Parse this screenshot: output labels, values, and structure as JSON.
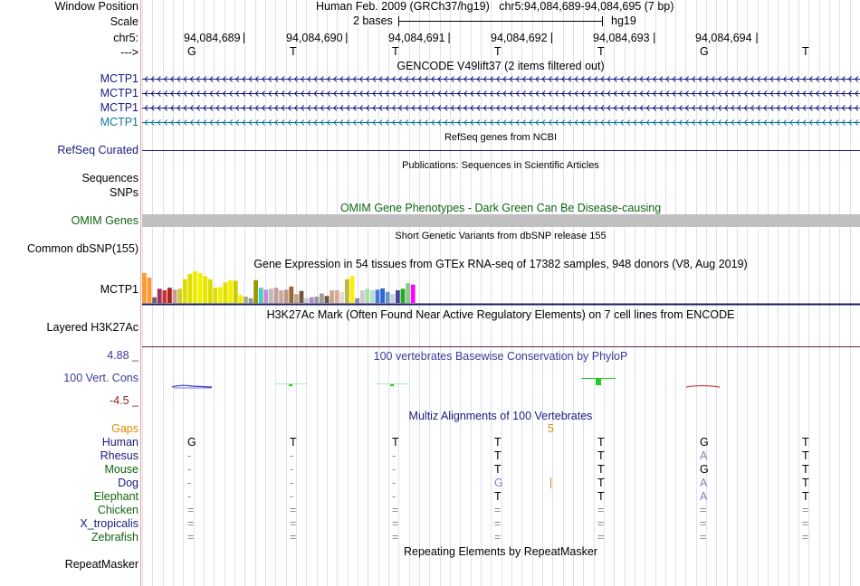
{
  "ruler": {
    "window_position_label": "Window Position",
    "scale_label": "Scale",
    "chrom_label": "chr5:",
    "strand_label": "--->",
    "assembly": "Human Feb. 2009 (GRCh37/hg19)",
    "position": "chr5:94,084,689-94,084,695 (7 bp)",
    "scale_text": "2 bases",
    "db": "hg19",
    "positions": [
      "94,084,689",
      "94,084,690",
      "94,084,691",
      "94,084,692",
      "94,084,693",
      "94,084,694"
    ],
    "bases": [
      "G",
      "T",
      "T",
      "T",
      "T",
      "G",
      "T"
    ]
  },
  "gencode": {
    "title": "GENCODE V49lift37 (2 items filtered out)",
    "items": [
      "MCTP1",
      "MCTP1",
      "MCTP1",
      "MCTP1"
    ]
  },
  "refseq": {
    "title": "RefSeq genes from NCBI",
    "label": "RefSeq Curated"
  },
  "publications": {
    "title": "Publications: Sequences in Scientific Articles",
    "label_sequences": "Sequences",
    "label_snps": "SNPs"
  },
  "omim": {
    "title": "OMIM Gene Phenotypes - Dark Green Can Be Disease-causing",
    "label": "OMIM Genes"
  },
  "dbsnp": {
    "title": "Short Genetic Variants from dbSNP release 155",
    "label": "Common dbSNP(155)"
  },
  "gtex": {
    "title": "Gene Expression in 54 tissues from GTEx RNA-seq of 17382 samples, 948 donors (V8, Aug 2019)",
    "label": "MCTP1",
    "colors": [
      "#ff9933",
      "#ff9933",
      "#666666",
      "#993366",
      "#cc3333",
      "#aa2222",
      "#cc9999",
      "#cccc33",
      "#dddd00",
      "#e0e000",
      "#ecec00",
      "#f0f000",
      "#e6e600",
      "#dcdc00",
      "#dede00",
      "#eeee00",
      "#e0e000",
      "#f0f000",
      "#cccc00",
      "#eeee00",
      "#aaaa88",
      "#999999",
      "#999900",
      "#44cccc",
      "#cc88cc",
      "#bbbbbb",
      "#cc9999",
      "#ccaa99",
      "#bb9988",
      "#996633",
      "#bbaa88",
      "#775544",
      "#cccccc",
      "#aa88cc",
      "#999999",
      "#aa9999",
      "#665544",
      "#ccaa88",
      "#ddaa99",
      "#dddddd",
      "#bbbb44",
      "#ffee00",
      "#8888cc",
      "#cccccc",
      "#aaddaa",
      "#bbddcc",
      "#4477dd",
      "#3366cc",
      "#6699cc",
      "#ccccdd",
      "#444499",
      "#22aa22",
      "#88cc88",
      "#ff00ff"
    ],
    "values": [
      95,
      80,
      18,
      45,
      40,
      48,
      42,
      45,
      75,
      92,
      100,
      94,
      85,
      75,
      48,
      50,
      65,
      72,
      70,
      25,
      20,
      15,
      72,
      48,
      42,
      45,
      48,
      40,
      42,
      52,
      28,
      38,
      15,
      18,
      20,
      30,
      22,
      40,
      40,
      35,
      75,
      85,
      15,
      40,
      45,
      40,
      42,
      46,
      35,
      28,
      40,
      45,
      62,
      58
    ]
  },
  "h3k27ac": {
    "title": "H3K27Ac Mark (Often Found Near Active Regulatory Elements) on 7 cell lines from ENCODE",
    "label": "Layered H3K27Ac"
  },
  "phylop": {
    "title": "100 vertebrates Basewise Conservation by PhyloP",
    "label": "100 Vert. Cons",
    "max": "4.88 _",
    "min": "-4.5 _"
  },
  "multiz": {
    "title": "Multiz Alignments of 100 Vertebrates",
    "gaps_label": "Gaps",
    "gap_count": "5",
    "species": [
      {
        "name": "Human",
        "bases": [
          "G",
          "T",
          "T",
          "T",
          "T",
          "G",
          "T"
        ]
      },
      {
        "name": "Rhesus",
        "bases": [
          "-",
          "-",
          "-",
          "T",
          "T",
          "A",
          "T"
        ]
      },
      {
        "name": "Mouse",
        "bases": [
          "-",
          "-",
          "-",
          "T",
          "T",
          "G",
          "T"
        ]
      },
      {
        "name": "Dog",
        "bases": [
          "-",
          "-",
          "-",
          "G",
          "T",
          "A",
          "T"
        ]
      },
      {
        "name": "Elephant",
        "bases": [
          "-",
          "-",
          "-",
          "T",
          "T",
          "A",
          "T"
        ]
      },
      {
        "name": "Chicken",
        "bases": [
          "=",
          "=",
          "=",
          "=",
          "=",
          "=",
          "="
        ]
      },
      {
        "name": "X_tropicalis",
        "bases": [
          "=",
          "=",
          "=",
          "=",
          "=",
          "=",
          "="
        ]
      },
      {
        "name": "Zebrafish",
        "bases": [
          "=",
          "=",
          "=",
          "=",
          "=",
          "=",
          "="
        ]
      }
    ]
  },
  "repeatmasker": {
    "title": "Repeating Elements by RepeatMasker",
    "label": "RepeatMasker"
  }
}
